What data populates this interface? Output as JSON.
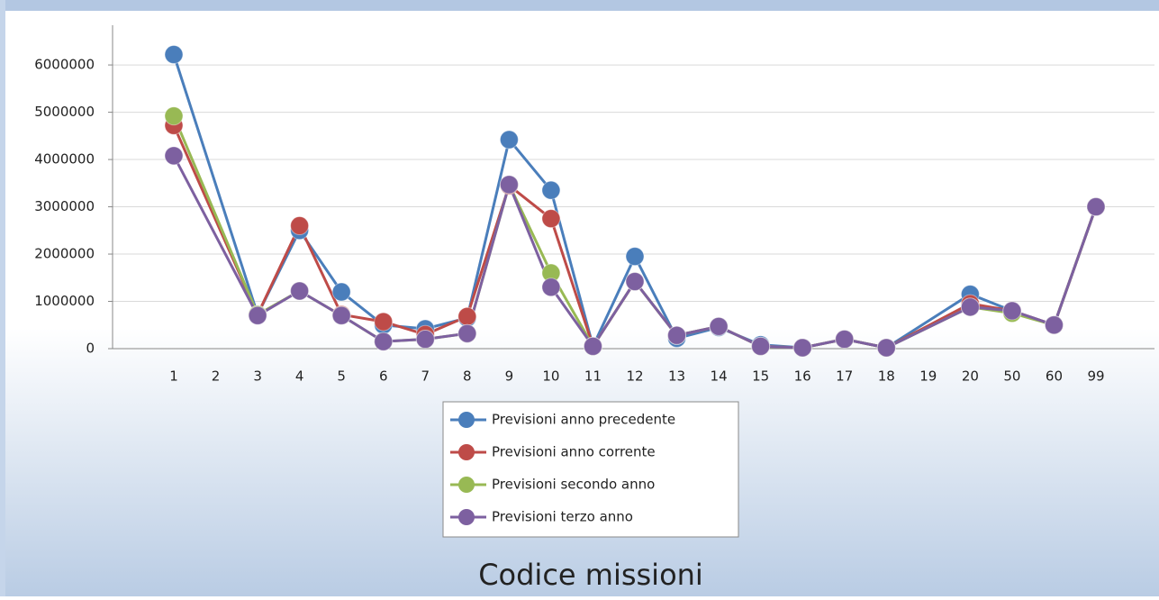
{
  "chart_data": {
    "type": "line",
    "x_label": "Codice missioni",
    "categories": [
      "1",
      "2",
      "3",
      "4",
      "5",
      "6",
      "7",
      "8",
      "9",
      "10",
      "11",
      "12",
      "13",
      "14",
      "15",
      "16",
      "17",
      "18",
      "19",
      "20",
      "50",
      "60",
      "99"
    ],
    "series": [
      {
        "name": "Previsioni anno precedente",
        "color": "#4a7ebb",
        "values": [
          6220000,
          null,
          720000,
          2500000,
          1200000,
          500000,
          420000,
          650000,
          4420000,
          3350000,
          50000,
          1950000,
          220000,
          450000,
          80000,
          20000,
          200000,
          20000,
          null,
          1150000,
          800000,
          500000,
          3000000
        ]
      },
      {
        "name": "Previsioni anno corrente",
        "color": "#be4b48",
        "values": [
          4720000,
          null,
          720000,
          2600000,
          720000,
          570000,
          300000,
          680000,
          3450000,
          2750000,
          50000,
          1420000,
          280000,
          470000,
          50000,
          20000,
          200000,
          20000,
          null,
          950000,
          800000,
          500000,
          3000000
        ]
      },
      {
        "name": "Previsioni secondo anno",
        "color": "#98b954",
        "values": [
          4920000,
          null,
          720000,
          1220000,
          700000,
          150000,
          200000,
          320000,
          3470000,
          1600000,
          50000,
          1420000,
          280000,
          470000,
          50000,
          20000,
          200000,
          20000,
          null,
          880000,
          750000,
          500000,
          3000000
        ]
      },
      {
        "name": "Previsioni terzo anno",
        "color": "#7d60a0",
        "values": [
          4080000,
          null,
          700000,
          1220000,
          700000,
          150000,
          200000,
          320000,
          3470000,
          1300000,
          50000,
          1420000,
          280000,
          470000,
          50000,
          20000,
          200000,
          20000,
          null,
          880000,
          800000,
          500000,
          3000000
        ]
      }
    ],
    "ylim": [
      0,
      6840000
    ],
    "yticks": [
      0,
      1000000,
      2000000,
      3000000,
      4000000,
      5000000,
      6000000
    ],
    "grid": true
  }
}
